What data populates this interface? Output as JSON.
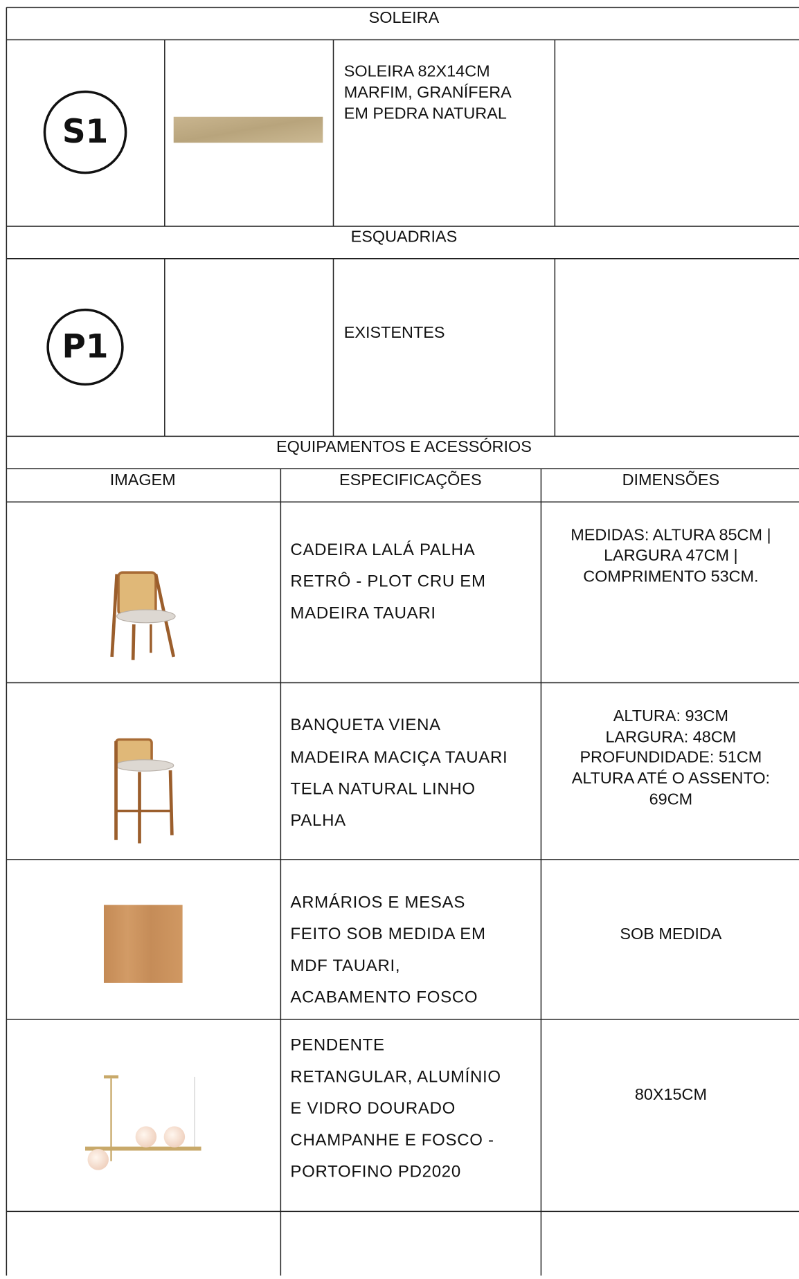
{
  "sections": [
    {
      "title": "SOLEIRA",
      "rows": [
        {
          "code": "S1",
          "description": [
            "SOLEIRA 82X14CM",
            "MARFIM, GRANÍFERA",
            "EM PEDRA NATURAL"
          ]
        }
      ]
    },
    {
      "title": "ESQUADRIAS",
      "rows": [
        {
          "code": "P1",
          "description": [
            "EXISTENTES"
          ]
        }
      ]
    },
    {
      "title": "EQUIPAMENTOS E ACESSÓRIOS",
      "columns": [
        "IMAGEM",
        "ESPECIFICAÇÕES",
        "DIMENSÕES"
      ],
      "items": [
        {
          "specification": [
            "CADEIRA LALÁ PALHA",
            "RETRÔ - PLOT CRU EM",
            "MADEIRA TAUARI"
          ],
          "dimensions": [
            "MEDIDAS: ALTURA 85CM |",
            "LARGURA 47CM |",
            "COMPRIMENTO 53CM."
          ]
        },
        {
          "specification": [
            "BANQUETA VIENA",
            "MADEIRA MACIÇA TAUARI",
            "TELA NATURAL LINHO",
            "PALHA"
          ],
          "dimensions": [
            "ALTURA: 93CM",
            "LARGURA: 48CM",
            "PROFUNDIDADE: 51CM",
            "ALTURA ATÉ O ASSENTO:",
            "69CM"
          ]
        },
        {
          "specification": [
            "ARMÁRIOS E MESAS",
            "FEITO SOB MEDIDA EM",
            "MDF TAUARI,",
            "ACABAMENTO FOSCO"
          ],
          "dimensions": [
            "SOB MEDIDA"
          ]
        },
        {
          "specification": [
            "PENDENTE",
            "RETANGULAR, ALUMÍNIO",
            "E VIDRO DOURADO",
            "CHAMPANHE E FOSCO -",
            "PORTOFINO PD2020"
          ],
          "dimensions": [
            "80X15CM"
          ]
        }
      ]
    }
  ]
}
